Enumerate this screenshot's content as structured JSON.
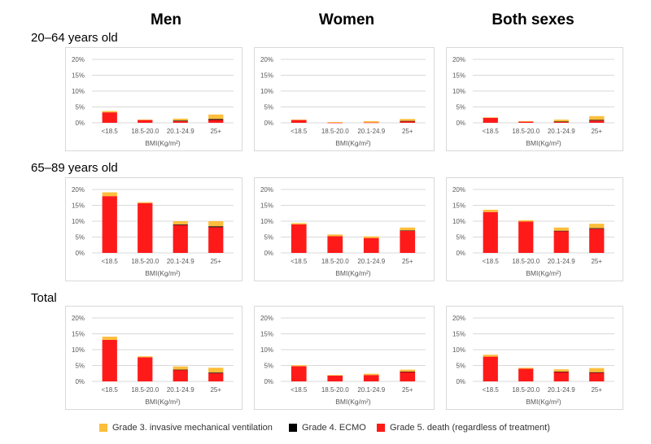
{
  "columns": [
    "Men",
    "Women",
    "Both sexes"
  ],
  "rows": [
    "20–64 years old",
    "65–89 years old",
    "Total"
  ],
  "colors": {
    "grade3": "#FDBE3B",
    "grade4": "#000000",
    "grade5": "#FF1A1A",
    "grid": "#d9d9d9",
    "tick_text": "#595959"
  },
  "legend": [
    {
      "key": "grade3",
      "label": "Grade 3. invasive mechanical ventilation"
    },
    {
      "key": "grade4",
      "label": "Grade 4. ECMO"
    },
    {
      "key": "grade5",
      "label": "Grade 5. death (regardless of treatment)"
    }
  ],
  "chart_data": [
    {
      "type": "bar",
      "stacked": true,
      "row": "20–64 years old",
      "column": "Men",
      "categories": [
        "<18.5",
        "18.5-20.0",
        "20.1-24.9",
        "25+"
      ],
      "xlabel": "BMI(Kg/m²)",
      "ylabel": "",
      "ylim": [
        0,
        20
      ],
      "yticks": [
        "0%",
        "5%",
        "10%",
        "15%",
        "20%"
      ],
      "series": [
        {
          "name": "Grade 5. death (regardless of treatment)",
          "key": "grade5",
          "values": [
            3.3,
            0.9,
            0.5,
            0.9
          ]
        },
        {
          "name": "Grade 4. ECMO",
          "key": "grade4",
          "values": [
            0,
            0,
            0.2,
            0.3
          ]
        },
        {
          "name": "Grade 3. invasive mechanical ventilation",
          "key": "grade3",
          "values": [
            0.4,
            0.1,
            0.6,
            1.4
          ]
        }
      ]
    },
    {
      "type": "bar",
      "stacked": true,
      "row": "20–64 years old",
      "column": "Women",
      "categories": [
        "<18.5",
        "18.5-20.0",
        "20.1-24.9",
        "25+"
      ],
      "xlabel": "BMI(Kg/m²)",
      "ylabel": "",
      "ylim": [
        0,
        20
      ],
      "yticks": [
        "0%",
        "5%",
        "10%",
        "15%",
        "20%"
      ],
      "series": [
        {
          "name": "Grade 5. death (regardless of treatment)",
          "key": "grade5",
          "values": [
            0.9,
            0.05,
            0.1,
            0.5
          ]
        },
        {
          "name": "Grade 4. ECMO",
          "key": "grade4",
          "values": [
            0,
            0,
            0,
            0.1
          ]
        },
        {
          "name": "Grade 3. invasive mechanical ventilation",
          "key": "grade3",
          "values": [
            0.1,
            0.2,
            0.4,
            0.6
          ]
        }
      ]
    },
    {
      "type": "bar",
      "stacked": true,
      "row": "20–64 years old",
      "column": "Both sexes",
      "categories": [
        "<18.5",
        "18.5-20.0",
        "20.1-24.9",
        "25+"
      ],
      "xlabel": "BMI(Kg/m²)",
      "ylabel": "",
      "ylim": [
        0,
        20
      ],
      "yticks": [
        "0%",
        "5%",
        "10%",
        "15%",
        "20%"
      ],
      "series": [
        {
          "name": "Grade 5. death (regardless of treatment)",
          "key": "grade5",
          "values": [
            1.6,
            0.4,
            0.3,
            0.7
          ]
        },
        {
          "name": "Grade 4. ECMO",
          "key": "grade4",
          "values": [
            0,
            0,
            0.1,
            0.2
          ]
        },
        {
          "name": "Grade 3. invasive mechanical ventilation",
          "key": "grade3",
          "values": [
            0.1,
            0.1,
            0.6,
            1.2
          ]
        }
      ]
    },
    {
      "type": "bar",
      "stacked": true,
      "row": "65–89 years old",
      "column": "Men",
      "categories": [
        "<18.5",
        "18.5-20.0",
        "20.1-24.9",
        "25+"
      ],
      "xlabel": "BMI(Kg/m²)",
      "ylabel": "",
      "ylim": [
        0,
        20
      ],
      "yticks": [
        "0%",
        "5%",
        "10%",
        "15%",
        "20%"
      ],
      "series": [
        {
          "name": "Grade 5. death (regardless of treatment)",
          "key": "grade5",
          "values": [
            17.9,
            15.7,
            8.8,
            8.1
          ]
        },
        {
          "name": "Grade 4. ECMO",
          "key": "grade4",
          "values": [
            0,
            0,
            0.2,
            0.3
          ]
        },
        {
          "name": "Grade 3. invasive mechanical ventilation",
          "key": "grade3",
          "values": [
            1.2,
            0.3,
            1.0,
            1.6
          ]
        }
      ]
    },
    {
      "type": "bar",
      "stacked": true,
      "row": "65–89 years old",
      "column": "Women",
      "categories": [
        "<18.5",
        "18.5-20.0",
        "20.1-24.9",
        "25+"
      ],
      "xlabel": "BMI(Kg/m²)",
      "ylabel": "",
      "ylim": [
        0,
        20
      ],
      "yticks": [
        "0%",
        "5%",
        "10%",
        "15%",
        "20%"
      ],
      "series": [
        {
          "name": "Grade 5. death (regardless of treatment)",
          "key": "grade5",
          "values": [
            9.0,
            5.3,
            4.7,
            7.0
          ]
        },
        {
          "name": "Grade 4. ECMO",
          "key": "grade4",
          "values": [
            0,
            0,
            0,
            0.1
          ]
        },
        {
          "name": "Grade 3. invasive mechanical ventilation",
          "key": "grade3",
          "values": [
            0.4,
            0.5,
            0.5,
            0.9
          ]
        }
      ]
    },
    {
      "type": "bar",
      "stacked": true,
      "row": "65–89 years old",
      "column": "Both sexes",
      "categories": [
        "<18.5",
        "18.5-20.0",
        "20.1-24.9",
        "25+"
      ],
      "xlabel": "BMI(Kg/m²)",
      "ylabel": "",
      "ylim": [
        0,
        20
      ],
      "yticks": [
        "0%",
        "5%",
        "10%",
        "15%",
        "20%"
      ],
      "series": [
        {
          "name": "Grade 5. death (regardless of treatment)",
          "key": "grade5",
          "values": [
            12.9,
            9.9,
            6.9,
            7.6
          ]
        },
        {
          "name": "Grade 4. ECMO",
          "key": "grade4",
          "values": [
            0,
            0,
            0.1,
            0.2
          ]
        },
        {
          "name": "Grade 3. invasive mechanical ventilation",
          "key": "grade3",
          "values": [
            0.7,
            0.4,
            1.0,
            1.4
          ]
        }
      ]
    },
    {
      "type": "bar",
      "stacked": true,
      "row": "Total",
      "column": "Men",
      "categories": [
        "<18.5",
        "18.5-20.0",
        "20.1-24.9",
        "25+"
      ],
      "xlabel": "BMI(Kg/m²)",
      "ylabel": "",
      "ylim": [
        0,
        20
      ],
      "yticks": [
        "0%",
        "5%",
        "10%",
        "15%",
        "20%"
      ],
      "series": [
        {
          "name": "Grade 5. death (regardless of treatment)",
          "key": "grade5",
          "values": [
            13.1,
            7.6,
            3.6,
            2.6
          ]
        },
        {
          "name": "Grade 4. ECMO",
          "key": "grade4",
          "values": [
            0,
            0,
            0.1,
            0.2
          ]
        },
        {
          "name": "Grade 3. invasive mechanical ventilation",
          "key": "grade3",
          "values": [
            1.0,
            0.3,
            1.0,
            1.5
          ]
        }
      ]
    },
    {
      "type": "bar",
      "stacked": true,
      "row": "Total",
      "column": "Women",
      "categories": [
        "<18.5",
        "18.5-20.0",
        "20.1-24.9",
        "25+"
      ],
      "xlabel": "BMI(Kg/m²)",
      "ylabel": "",
      "ylim": [
        0,
        20
      ],
      "yticks": [
        "0%",
        "5%",
        "10%",
        "15%",
        "20%"
      ],
      "series": [
        {
          "name": "Grade 5. death (regardless of treatment)",
          "key": "grade5",
          "values": [
            4.8,
            1.8,
            2.0,
            3.0
          ]
        },
        {
          "name": "Grade 4. ECMO",
          "key": "grade4",
          "values": [
            0,
            0,
            0,
            0.1
          ]
        },
        {
          "name": "Grade 3. invasive mechanical ventilation",
          "key": "grade3",
          "values": [
            0.3,
            0.2,
            0.4,
            0.6
          ]
        }
      ]
    },
    {
      "type": "bar",
      "stacked": true,
      "row": "Total",
      "column": "Both sexes",
      "categories": [
        "<18.5",
        "18.5-20.0",
        "20.1-24.9",
        "25+"
      ],
      "xlabel": "BMI(Kg/m²)",
      "ylabel": "",
      "ylim": [
        0,
        20
      ],
      "yticks": [
        "0%",
        "5%",
        "10%",
        "15%",
        "20%"
      ],
      "series": [
        {
          "name": "Grade 5. death (regardless of treatment)",
          "key": "grade5",
          "values": [
            7.8,
            4.0,
            3.0,
            2.7
          ]
        },
        {
          "name": "Grade 4. ECMO",
          "key": "grade4",
          "values": [
            0,
            0,
            0.1,
            0.2
          ]
        },
        {
          "name": "Grade 3. invasive mechanical ventilation",
          "key": "grade3",
          "values": [
            0.6,
            0.3,
            0.7,
            1.3
          ]
        }
      ]
    }
  ]
}
